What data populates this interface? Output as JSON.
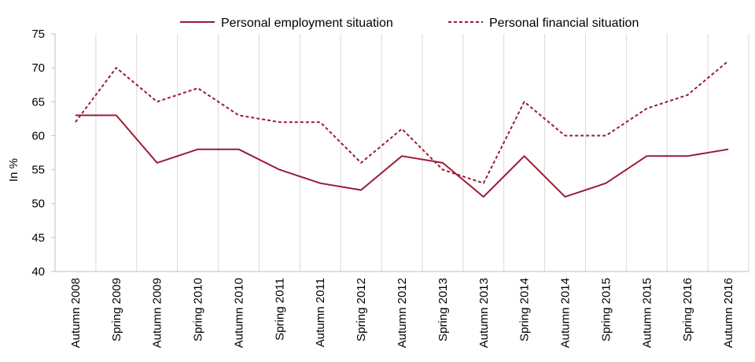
{
  "chart_data": {
    "type": "line",
    "title": "",
    "xlabel": "",
    "ylabel": "In %",
    "ylim": [
      40,
      75
    ],
    "yticks": [
      "40",
      "45",
      "50",
      "55",
      "60",
      "65",
      "70",
      "75"
    ],
    "grid": "vertical",
    "legend": "top-center",
    "categories": [
      "Autumn 2008",
      "Spring 2009",
      "Autumn 2009",
      "Spring 2010",
      "Autumn 2010",
      "Spring 2011",
      "Autumn 2011",
      "Spring 2012",
      "Autumn 2012",
      "Spring 2013",
      "Autumn 2013",
      "Spring 2014",
      "Autumn 2014",
      "Spring 2015",
      "Autumn 2015",
      "Spring 2016",
      "Autumn 2016"
    ],
    "series": [
      {
        "name": "Personal employment situation",
        "style": "solid",
        "color": "#9b1b34",
        "values": [
          63,
          63,
          56,
          58,
          58,
          55,
          53,
          52,
          57,
          56,
          51,
          57,
          51,
          53,
          57,
          57,
          58
        ]
      },
      {
        "name": "Personal financial situation",
        "style": "dashed",
        "color": "#9b1b34",
        "values": [
          62,
          70,
          65,
          67,
          63,
          62,
          62,
          56,
          61,
          55,
          53,
          65,
          60,
          60,
          64,
          66,
          71
        ]
      }
    ]
  },
  "colors": {
    "series": "#9b1b34",
    "grid": "#d9d9d9",
    "axis": "#bfbfbf"
  }
}
